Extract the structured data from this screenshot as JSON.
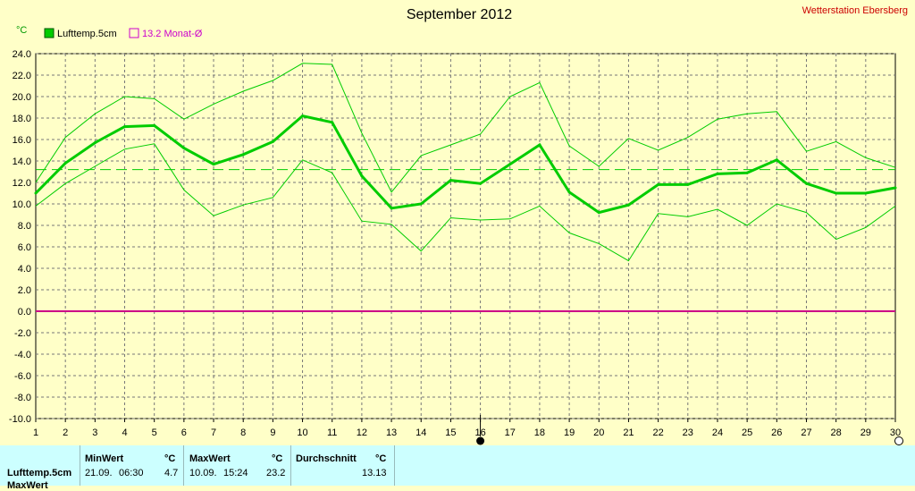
{
  "header": {
    "title": "September 2012",
    "station": "Wetterstation Ebersberg",
    "unit": "°C"
  },
  "legend": [
    {
      "label": "Lufttemp.5cm",
      "color": "#00cc00"
    },
    {
      "label": "13.2 Monat-Ø",
      "color": "#cc00cc"
    }
  ],
  "chart_data": {
    "type": "line",
    "title": "September 2012",
    "ylabel": "°C",
    "ylim": [
      -10,
      24
    ],
    "yticks": [
      "24.0",
      "22.0",
      "20.0",
      "18.0",
      "16.0",
      "14.0",
      "12.0",
      "10.0",
      "8.0",
      "6.0",
      "4.0",
      "2.0",
      "0.0",
      "-2.0",
      "-4.0",
      "-6.0",
      "-8.0",
      "-10.0"
    ],
    "x": [
      1,
      2,
      3,
      4,
      5,
      6,
      7,
      8,
      9,
      10,
      11,
      12,
      13,
      14,
      15,
      16,
      17,
      18,
      19,
      20,
      21,
      22,
      23,
      24,
      25,
      26,
      27,
      28,
      29,
      30
    ],
    "series": [
      {
        "name": "Lufttemp.5cm",
        "role": "mean",
        "color": "#00cc00",
        "values": [
          11.0,
          13.8,
          15.7,
          17.2,
          17.3,
          15.2,
          13.7,
          14.6,
          15.8,
          18.2,
          17.6,
          12.6,
          9.6,
          10.0,
          12.2,
          11.9,
          13.7,
          15.5,
          11.1,
          9.2,
          9.9,
          11.8,
          11.8,
          12.8,
          12.9,
          14.1,
          11.9,
          11.0,
          11.0,
          11.5
        ]
      },
      {
        "role": "max",
        "color": "#00cc00",
        "values": [
          12.0,
          16.2,
          18.4,
          20.0,
          19.8,
          17.9,
          19.3,
          20.5,
          21.5,
          23.1,
          23.0,
          16.6,
          11.1,
          14.5,
          15.5,
          16.5,
          20.0,
          21.3,
          15.4,
          13.5,
          16.1,
          15.0,
          16.2,
          17.9,
          18.4,
          18.6,
          14.9,
          15.8,
          14.3,
          13.4
        ]
      },
      {
        "role": "min",
        "color": "#00cc00",
        "values": [
          9.8,
          11.9,
          13.5,
          15.1,
          15.6,
          11.3,
          8.9,
          9.9,
          10.6,
          14.1,
          12.9,
          8.4,
          8.1,
          5.6,
          8.7,
          8.5,
          8.6,
          9.8,
          7.3,
          6.3,
          4.7,
          9.1,
          8.8,
          9.5,
          8.0,
          10.0,
          9.2,
          6.7,
          7.8,
          9.8
        ]
      }
    ],
    "monthly_average": {
      "value": 13.2,
      "color": "#00cc00"
    },
    "zero_line_color": "#cc0088",
    "grid": true,
    "markers": [
      16,
      30
    ]
  },
  "stats": {
    "headers": {
      "min": "MinWert",
      "min_unit": "°C",
      "max": "MaxWert",
      "max_unit": "°C",
      "avg": "Durchschnitt",
      "avg_unit": "°C"
    },
    "row1": {
      "name": "Lufttemp.5cm",
      "min_date": "21.09.",
      "min_time": "06:30",
      "min_val": "4.7",
      "max_date": "10.09.",
      "max_time": "15:24",
      "max_val": "23.2",
      "avg_val": "13.13"
    },
    "row2_partial": "MaxWert"
  }
}
